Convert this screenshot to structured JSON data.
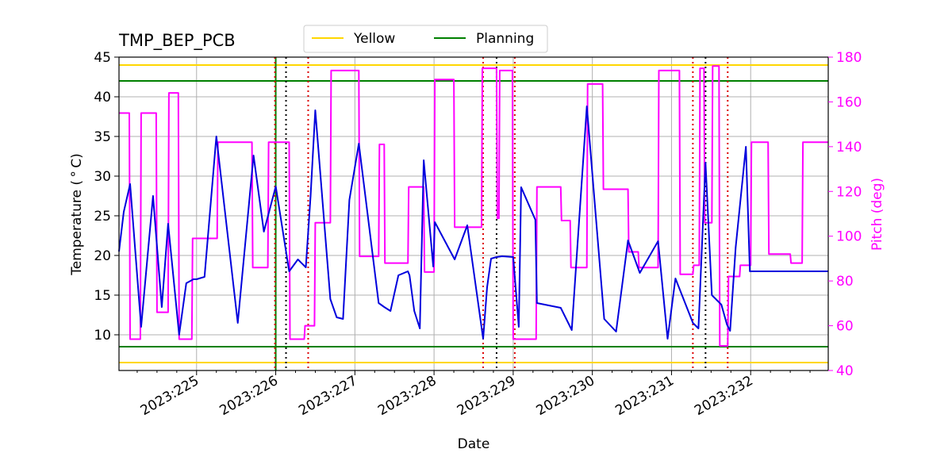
{
  "chart_data": {
    "type": "line",
    "title": "TMP_BEP_PCB",
    "xlabel": "Date",
    "ylabel": "Temperature ($^\\circ$C)",
    "ylabel_display": "Temperature ( ° C)",
    "y2label": "Pitch (deg)",
    "xlim": [
      224.02,
      232.98
    ],
    "ylim": [
      5.5,
      45
    ],
    "y2lim": [
      40,
      180
    ],
    "xticks": [
      225,
      226,
      227,
      228,
      229,
      230,
      231,
      232
    ],
    "xtick_labels": [
      "2023:225",
      "2023:226",
      "2023:227",
      "2023:228",
      "2023:229",
      "2023:230",
      "2023:231",
      "2023:232"
    ],
    "yticks": [
      10,
      15,
      20,
      25,
      30,
      35,
      40,
      45
    ],
    "y2ticks": [
      40,
      60,
      80,
      100,
      120,
      140,
      160,
      180
    ],
    "grid": true,
    "legend_position": "top-center",
    "legend": [
      {
        "label": "Yellow",
        "color": "#ffd700"
      },
      {
        "label": "Planning",
        "color": "#008000"
      }
    ],
    "limits": [
      {
        "name": "yellow-high",
        "value": 44,
        "color": "#ffd700"
      },
      {
        "name": "yellow-low",
        "value": 6.5,
        "color": "#ffd700"
      },
      {
        "name": "planning-high",
        "value": 42,
        "color": "#008000"
      },
      {
        "name": "planning-low",
        "value": 8.5,
        "color": "#008000"
      }
    ],
    "vertical_markers": [
      {
        "x": 226.0,
        "color": "#008000",
        "style": "solid"
      },
      {
        "x": 225.99,
        "color": "#dd0000",
        "style": "dotted"
      },
      {
        "x": 226.13,
        "color": "#000000",
        "style": "dotted"
      },
      {
        "x": 226.41,
        "color": "#dd0000",
        "style": "dotted"
      },
      {
        "x": 228.62,
        "color": "#dd0000",
        "style": "dotted"
      },
      {
        "x": 228.79,
        "color": "#000000",
        "style": "dotted"
      },
      {
        "x": 229.02,
        "color": "#dd0000",
        "style": "dotted"
      },
      {
        "x": 231.27,
        "color": "#dd0000",
        "style": "dotted"
      },
      {
        "x": 231.43,
        "color": "#000000",
        "style": "dotted"
      },
      {
        "x": 231.71,
        "color": "#dd0000",
        "style": "dotted"
      }
    ],
    "series": [
      {
        "name": "Temperature",
        "axis": "left",
        "color": "#0000dd",
        "x": [
          224.02,
          224.08,
          224.16,
          224.3,
          224.45,
          224.56,
          224.64,
          224.78,
          224.87,
          224.96,
          225.0,
          225.1,
          225.25,
          225.52,
          225.72,
          225.85,
          226.0,
          226.17,
          226.28,
          226.38,
          226.44,
          226.5,
          226.69,
          226.77,
          226.85,
          226.93,
          227.05,
          227.3,
          227.37,
          227.45,
          227.55,
          227.67,
          227.69,
          227.75,
          227.82,
          227.87,
          227.99,
          228.01,
          228.26,
          228.42,
          228.62,
          228.67,
          228.72,
          228.79,
          228.86,
          229.0,
          229.07,
          229.1,
          229.28,
          229.3,
          229.6,
          229.74,
          229.93,
          230.15,
          230.3,
          230.45,
          230.6,
          230.83,
          230.95,
          231.05,
          231.27,
          231.34,
          231.43,
          231.51,
          231.63,
          231.7,
          231.74,
          231.81,
          231.94,
          231.99,
          232.01,
          232.2,
          232.48,
          232.6,
          232.7,
          232.98
        ],
        "y": [
          20.5,
          25.5,
          29,
          11,
          27.5,
          13.5,
          24,
          10,
          16.5,
          17,
          17,
          17.3,
          35,
          11.5,
          32.6,
          23,
          28.7,
          18,
          19.5,
          18.5,
          27.5,
          38.3,
          14.5,
          12.2,
          12,
          27,
          34.1,
          14,
          13.5,
          13,
          17.5,
          18,
          17.5,
          13,
          10.8,
          32,
          18.6,
          24.2,
          19.5,
          23.8,
          9.5,
          16,
          19.6,
          19.8,
          19.9,
          19.8,
          11,
          28.6,
          24.5,
          14,
          13.4,
          10.6,
          38.8,
          12,
          10.4,
          21.9,
          17.8,
          21.8,
          9.5,
          17.1,
          11.5,
          10.8,
          31.7,
          15,
          13.8,
          11.3,
          10.5,
          21,
          33.7,
          18,
          18,
          18,
          18,
          18,
          18,
          18
        ]
      },
      {
        "name": "Pitch",
        "axis": "right",
        "color": "#ff00ff",
        "x": [
          224.02,
          224.15,
          224.16,
          224.29,
          224.3,
          224.49,
          224.5,
          224.64,
          224.65,
          224.77,
          224.78,
          224.94,
          224.95,
          225.26,
          225.27,
          225.7,
          225.71,
          225.9,
          225.91,
          226.17,
          226.18,
          226.36,
          226.37,
          226.49,
          226.5,
          226.69,
          226.7,
          227.05,
          227.06,
          227.3,
          227.31,
          227.37,
          227.38,
          227.67,
          227.68,
          227.87,
          227.88,
          228.0,
          228.01,
          228.25,
          228.26,
          228.6,
          228.61,
          228.79,
          228.8,
          228.82,
          228.83,
          228.99,
          229.0,
          229.29,
          229.3,
          229.6,
          229.61,
          229.72,
          229.73,
          229.93,
          229.94,
          230.13,
          230.14,
          230.45,
          230.46,
          230.58,
          230.59,
          230.83,
          230.84,
          231.1,
          231.11,
          231.27,
          231.28,
          231.35,
          231.36,
          231.41,
          231.42,
          231.51,
          231.52,
          231.6,
          231.61,
          231.71,
          231.72,
          231.86,
          231.87,
          232.0,
          232.01,
          232.22,
          232.23,
          232.5,
          232.51,
          232.65,
          232.66,
          232.98
        ],
        "y": [
          155,
          155,
          54,
          54,
          155,
          155,
          66,
          66,
          164,
          164,
          54,
          54,
          99,
          99,
          142,
          142,
          86,
          86,
          142,
          142,
          54,
          54,
          60,
          60,
          106,
          106,
          174,
          174,
          91,
          91,
          141,
          141,
          88,
          88,
          122,
          122,
          84,
          84,
          170,
          170,
          104,
          104,
          175,
          175,
          108,
          108,
          174,
          174,
          54,
          54,
          122,
          122,
          107,
          107,
          86,
          86,
          168,
          168,
          121,
          121,
          93,
          93,
          86,
          86,
          174,
          174,
          83,
          83,
          87,
          87,
          175,
          175,
          106,
          106,
          176,
          176,
          51,
          51,
          82,
          82,
          87,
          87,
          142,
          142,
          92,
          92,
          88,
          88,
          142,
          142
        ]
      }
    ]
  }
}
